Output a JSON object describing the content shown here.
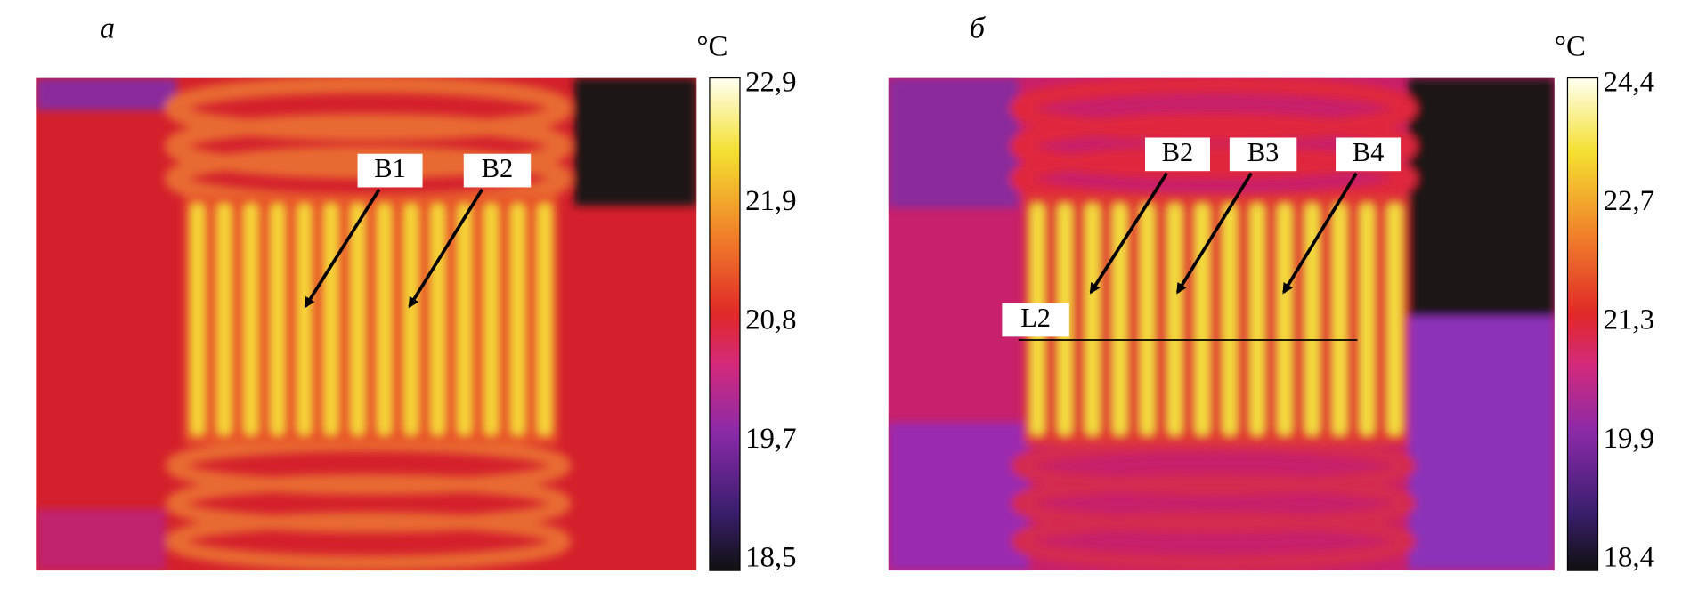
{
  "panels": [
    {
      "label": "а",
      "unit": "°C",
      "scale": [
        "22,9",
        "21,9",
        "20,8",
        "19,7",
        "18,5"
      ],
      "markers": [
        "B1",
        "B2"
      ]
    },
    {
      "label": "б",
      "unit": "°C",
      "scale": [
        "24,4",
        "22,7",
        "21,3",
        "19,9",
        "18,4"
      ],
      "markers": [
        "B2",
        "B3",
        "B4",
        "L2"
      ]
    }
  ]
}
